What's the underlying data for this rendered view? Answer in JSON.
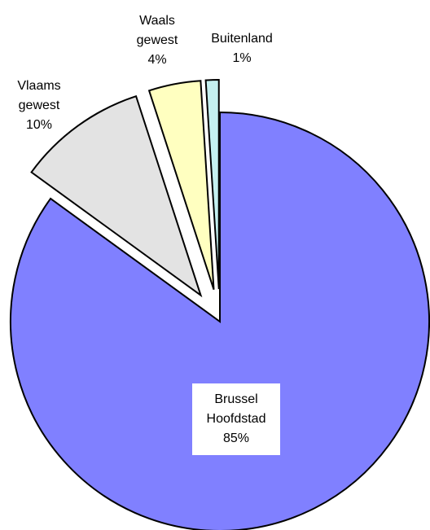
{
  "chart_data": {
    "type": "pie",
    "categories": [
      "Brussel Hoofdstad",
      "Vlaams gewest",
      "Waals gewest",
      "Buitenland"
    ],
    "values": [
      85,
      10,
      4,
      1
    ],
    "value_labels": [
      "85%",
      "10%",
      "4%",
      "1%"
    ],
    "colors": [
      "#8080ff",
      "#e3e3e3",
      "#ffffc0",
      "#c4f0f0"
    ]
  }
}
